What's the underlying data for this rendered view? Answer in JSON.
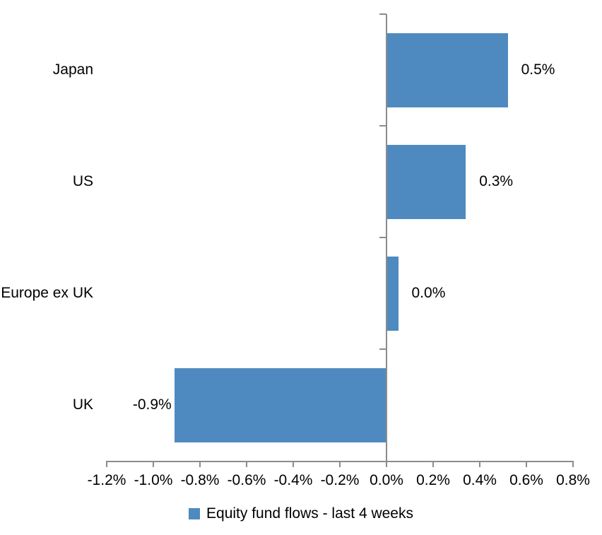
{
  "chart_data": {
    "type": "bar",
    "orientation": "horizontal",
    "title": "",
    "xlabel": "",
    "ylabel": "",
    "categories": [
      "Japan",
      "US",
      "Europe ex UK",
      "UK"
    ],
    "series": [
      {
        "name": "Equity fund flows - last 4 weeks",
        "values": [
          0.52,
          0.34,
          0.05,
          -0.91
        ],
        "data_labels": [
          "0.5%",
          "0.3%",
          "0.0%",
          "-0.9%"
        ]
      }
    ],
    "xlim": [
      -1.2,
      0.8
    ],
    "x_tick_values": [
      -1.2,
      -1.0,
      -0.8,
      -0.6,
      -0.4,
      -0.2,
      0.0,
      0.2,
      0.4,
      0.6,
      0.8
    ],
    "x_tick_labels": [
      "-1.2%",
      "-1.0%",
      "-0.8%",
      "-0.6%",
      "-0.4%",
      "-0.2%",
      "0.0%",
      "0.2%",
      "0.4%",
      "0.6%",
      "0.8%"
    ],
    "grid": "off",
    "legend": {
      "position": "bottom",
      "label": "Equity fund flows - last 4 weeks"
    },
    "colors": {
      "bar": "#4E8ABF",
      "axis": "#8C8C8C",
      "text": "#000000",
      "background": "#FFFFFF"
    }
  }
}
